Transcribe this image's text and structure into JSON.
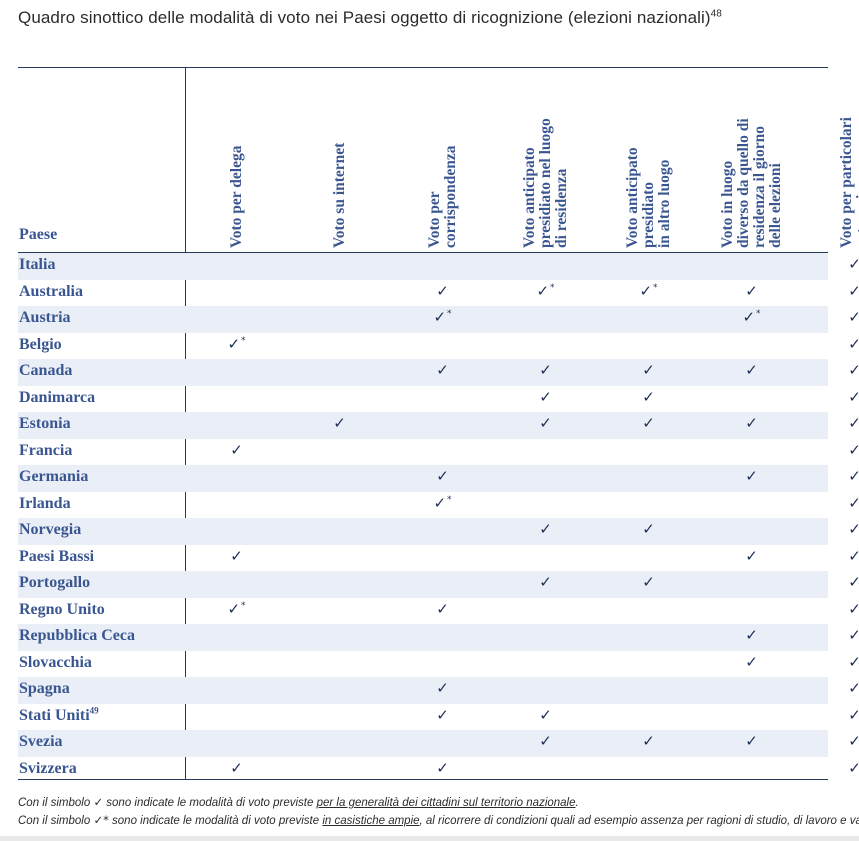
{
  "title": "Quadro sinottico delle modalità di voto nei Paesi oggetto di ricognizione (elezioni nazionali)",
  "title_note": "48",
  "table": {
    "first_header": "Paese",
    "columns": [
      {
        "lines": [
          "Voto per delega"
        ]
      },
      {
        "lines": [
          "Voto su internet"
        ]
      },
      {
        "lines": [
          "Voto per",
          "corrispondenza"
        ]
      },
      {
        "lines": [
          "Voto anticipato",
          "presidiato nel luogo",
          "di residenza"
        ]
      },
      {
        "lines": [
          "Voto anticipato",
          "presidiato",
          "in altro luogo"
        ]
      },
      {
        "lines": [
          "Voto in luogo",
          "diverso da quello di",
          "residenza il giorno",
          "delle elezioni"
        ]
      },
      {
        "lines": [
          "Voto per particolari",
          "categorie"
        ]
      }
    ],
    "check_symbol": "✓",
    "star_symbol": "*",
    "rows": [
      {
        "country": "Italia",
        "note": "",
        "cells": [
          "",
          "",
          "",
          "",
          "",
          "",
          "y"
        ]
      },
      {
        "country": "Australia",
        "note": "",
        "cells": [
          "",
          "",
          "y",
          "s",
          "s",
          "y",
          "y"
        ]
      },
      {
        "country": "Austria",
        "note": "",
        "cells": [
          "",
          "",
          "s",
          "",
          "",
          "s",
          "y"
        ]
      },
      {
        "country": "Belgio",
        "note": "",
        "cells": [
          "s",
          "",
          "",
          "",
          "",
          "",
          "y"
        ]
      },
      {
        "country": "Canada",
        "note": "",
        "cells": [
          "",
          "",
          "y",
          "y",
          "y",
          "y",
          "y"
        ]
      },
      {
        "country": "Danimarca",
        "note": "",
        "cells": [
          "",
          "",
          "",
          "y",
          "y",
          "",
          "y"
        ]
      },
      {
        "country": "Estonia",
        "note": "",
        "cells": [
          "",
          "y",
          "",
          "y",
          "y",
          "y",
          "y"
        ]
      },
      {
        "country": "Francia",
        "note": "",
        "cells": [
          "y",
          "",
          "",
          "",
          "",
          "",
          "y"
        ]
      },
      {
        "country": "Germania",
        "note": "",
        "cells": [
          "",
          "",
          "y",
          "",
          "",
          "y",
          "y"
        ]
      },
      {
        "country": "Irlanda",
        "note": "",
        "cells": [
          "",
          "",
          "s",
          "",
          "",
          "",
          "y"
        ]
      },
      {
        "country": "Norvegia",
        "note": "",
        "cells": [
          "",
          "",
          "",
          "y",
          "y",
          "",
          "y"
        ]
      },
      {
        "country": "Paesi Bassi",
        "note": "",
        "cells": [
          "y",
          "",
          "",
          "",
          "",
          "y",
          "y"
        ]
      },
      {
        "country": "Portogallo",
        "note": "",
        "cells": [
          "",
          "",
          "",
          "y",
          "y",
          "",
          "y"
        ]
      },
      {
        "country": "Regno Unito",
        "note": "",
        "cells": [
          "s",
          "",
          "y",
          "",
          "",
          "",
          "y"
        ]
      },
      {
        "country": "Repubblica Ceca",
        "note": "",
        "cells": [
          "",
          "",
          "",
          "",
          "",
          "y",
          "y"
        ]
      },
      {
        "country": "Slovacchia",
        "note": "",
        "cells": [
          "",
          "",
          "",
          "",
          "",
          "y",
          "y"
        ]
      },
      {
        "country": "Spagna",
        "note": "",
        "cells": [
          "",
          "",
          "y",
          "",
          "",
          "",
          "y"
        ]
      },
      {
        "country": "Stati Uniti",
        "note": "49",
        "cells": [
          "",
          "",
          "y",
          "y",
          "",
          "",
          "y"
        ]
      },
      {
        "country": "Svezia",
        "note": "",
        "cells": [
          "",
          "",
          "",
          "y",
          "y",
          "y",
          "y"
        ]
      },
      {
        "country": "Svizzera",
        "note": "",
        "cells": [
          "y",
          "",
          "y",
          "",
          "",
          "",
          "y"
        ]
      }
    ]
  },
  "notes": {
    "line1": {
      "prefix": "Con il simbolo",
      "symbol": "✓",
      "text": "sono indicate le modalità di voto previste",
      "underlined": "per la generalità dei cittadini sul territorio nazionale",
      "suffix": "."
    },
    "line2": {
      "prefix": "Con il simbolo",
      "symbol": "✓*",
      "text": "sono indicate le modalità di voto previste",
      "underlined": "in casistiche ampie",
      "suffix": ", al ricorrere di condizioni quali ad esempio assenza per ragioni di studio, di lavoro e vacanza."
    }
  }
}
